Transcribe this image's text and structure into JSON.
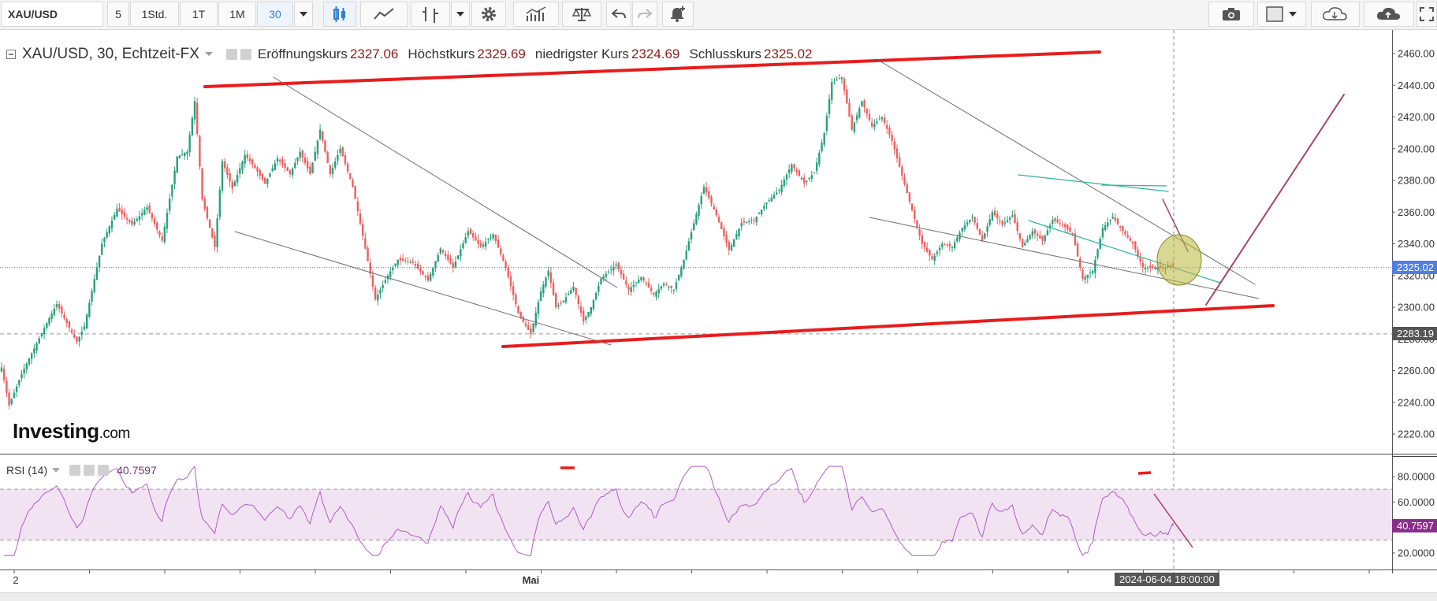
{
  "toolbar": {
    "symbol": "XAU/USD",
    "intervals": [
      "5",
      "1Std.",
      "1T",
      "1M",
      "30"
    ],
    "active_interval": "30"
  },
  "header": {
    "symbol_line": "XAU/USD, 30, Echtzeit-FX",
    "open_label": "Eröffnungskurs",
    "open_value": "2327.06",
    "high_label": "Höchstkurs",
    "high_value": "2329.69",
    "low_label": "niedrigster Kurs",
    "low_value": "2324.69",
    "close_label": "Schlusskurs",
    "close_value": "2325.02"
  },
  "logo": {
    "main": "Investing",
    "suffix": ".com"
  },
  "rsi": {
    "label": "RSI (14)",
    "value": "40.7597",
    "value_tag": "40.7597"
  },
  "tags": {
    "last_price": "2325.02",
    "horizontal_level": "2283.19",
    "crosshair_time": "2024-06-04 18:00:00"
  },
  "x_axis_labels": [
    {
      "text": "2",
      "i": 0
    },
    {
      "text": "Mai",
      "i": 211
    }
  ],
  "colors": {
    "up": "#26a17b",
    "down": "#ee5f5f",
    "channel": "#e81c1c",
    "trendline": "#6e6e6e",
    "flag": "#2bb3a3",
    "projection": "#a7436a",
    "rsi_line": "#b05bc7",
    "rsi_band": "#f2e3f3",
    "last_price_tag": "#4f7fe0",
    "rsi_tag": "#8b2e8b",
    "marker": "#b8b83a"
  },
  "chart_data": [
    {
      "type": "candlestick",
      "title": "XAU/USD, 30, Echtzeit-FX",
      "y_ticks": [
        2220,
        2240,
        2260,
        2280,
        2300,
        2320,
        2340,
        2360,
        2380,
        2400,
        2420,
        2440,
        2460
      ],
      "ylim": [
        2210,
        2465
      ],
      "n_bars": 468,
      "anchors": [
        [
          0,
          2262
        ],
        [
          3,
          2238
        ],
        [
          8,
          2258
        ],
        [
          18,
          2290
        ],
        [
          22,
          2302
        ],
        [
          30,
          2278
        ],
        [
          33,
          2288
        ],
        [
          40,
          2340
        ],
        [
          46,
          2362
        ],
        [
          52,
          2352
        ],
        [
          58,
          2363
        ],
        [
          64,
          2342
        ],
        [
          70,
          2395
        ],
        [
          74,
          2398
        ],
        [
          77,
          2430
        ],
        [
          80,
          2368
        ],
        [
          85,
          2338
        ],
        [
          88,
          2392
        ],
        [
          92,
          2375
        ],
        [
          97,
          2396
        ],
        [
          101,
          2388
        ],
        [
          105,
          2378
        ],
        [
          110,
          2394
        ],
        [
          115,
          2384
        ],
        [
          119,
          2398
        ],
        [
          123,
          2384
        ],
        [
          127,
          2412
        ],
        [
          131,
          2384
        ],
        [
          135,
          2400
        ],
        [
          140,
          2376
        ],
        [
          144,
          2345
        ],
        [
          149,
          2305
        ],
        [
          154,
          2320
        ],
        [
          158,
          2330
        ],
        [
          164,
          2328
        ],
        [
          170,
          2317
        ],
        [
          175,
          2337
        ],
        [
          180,
          2325
        ],
        [
          186,
          2348
        ],
        [
          191,
          2338
        ],
        [
          196,
          2346
        ],
        [
          201,
          2325
        ],
        [
          206,
          2296
        ],
        [
          211,
          2283
        ],
        [
          215,
          2310
        ],
        [
          218,
          2323
        ],
        [
          221,
          2300
        ],
        [
          224,
          2304
        ],
        [
          228,
          2313
        ],
        [
          232,
          2291
        ],
        [
          235,
          2300
        ],
        [
          239,
          2318
        ],
        [
          245,
          2327
        ],
        [
          250,
          2311
        ],
        [
          255,
          2319
        ],
        [
          260,
          2308
        ],
        [
          264,
          2315
        ],
        [
          268,
          2311
        ],
        [
          272,
          2330
        ],
        [
          276,
          2353
        ],
        [
          280,
          2376
        ],
        [
          285,
          2358
        ],
        [
          290,
          2336
        ],
        [
          295,
          2353
        ],
        [
          300,
          2355
        ],
        [
          305,
          2366
        ],
        [
          310,
          2374
        ],
        [
          315,
          2390
        ],
        [
          320,
          2378
        ],
        [
          324,
          2385
        ],
        [
          328,
          2410
        ],
        [
          331,
          2442
        ],
        [
          335,
          2445
        ],
        [
          339,
          2412
        ],
        [
          343,
          2430
        ],
        [
          347,
          2414
        ],
        [
          351,
          2420
        ],
        [
          355,
          2405
        ],
        [
          359,
          2383
        ],
        [
          363,
          2361
        ],
        [
          367,
          2340
        ],
        [
          371,
          2330
        ],
        [
          375,
          2340
        ],
        [
          379,
          2338
        ],
        [
          383,
          2350
        ],
        [
          387,
          2357
        ],
        [
          391,
          2342
        ],
        [
          395,
          2360
        ],
        [
          399,
          2352
        ],
        [
          403,
          2358
        ],
        [
          407,
          2338
        ],
        [
          411,
          2348
        ],
        [
          415,
          2342
        ],
        [
          419,
          2355
        ],
        [
          423,
          2352
        ],
        [
          427,
          2346
        ],
        [
          431,
          2318
        ],
        [
          435,
          2323
        ],
        [
          439,
          2350
        ],
        [
          443,
          2357
        ],
        [
          447,
          2348
        ],
        [
          451,
          2340
        ],
        [
          455,
          2325
        ]
      ],
      "last": {
        "open": 2327.06,
        "high": 2329.69,
        "low": 2324.69,
        "close": 2325.02
      },
      "horizontal_level": 2283.19
    },
    {
      "type": "line",
      "title": "RSI (14)",
      "y_ticks": [
        20,
        40,
        60,
        80
      ],
      "ylim": [
        15,
        85
      ],
      "bands": [
        30,
        70
      ],
      "n_points": 468,
      "last": 40.7597
    }
  ]
}
